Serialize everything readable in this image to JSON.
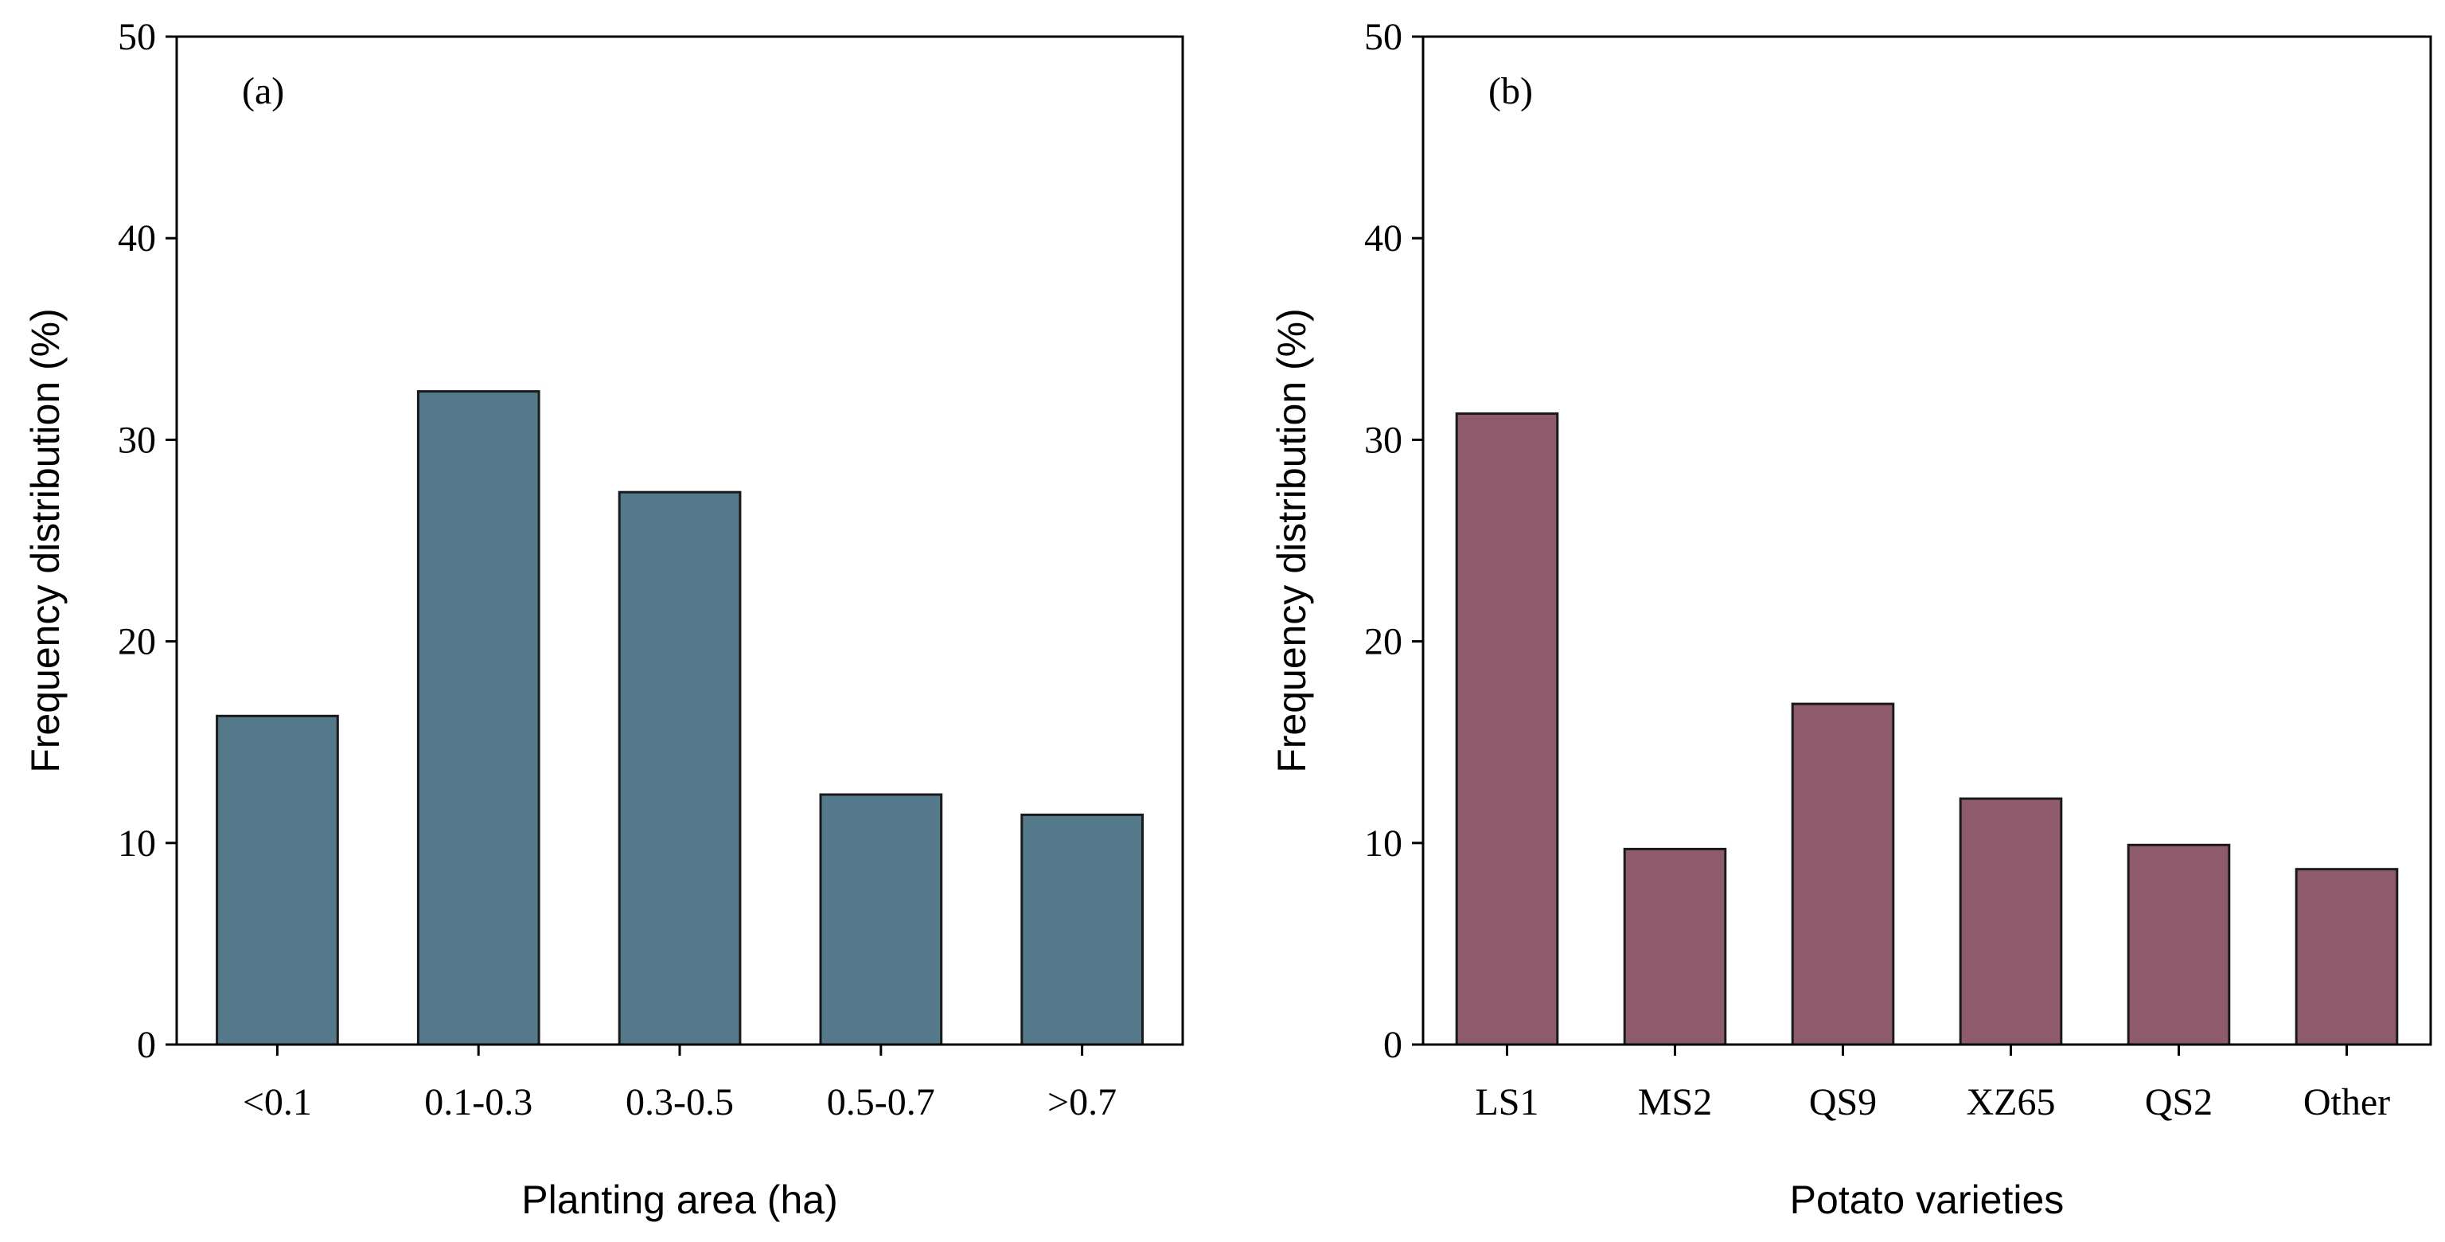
{
  "chart_data": [
    {
      "type": "bar",
      "panel_label": "(a)",
      "categories": [
        "<0.1",
        "0.1-0.3",
        "0.3-0.5",
        "0.5-0.7",
        ">0.7"
      ],
      "values": [
        16.3,
        32.4,
        27.4,
        12.4,
        11.4
      ],
      "title": "",
      "xlabel": "Planting area (ha)",
      "ylabel": "Frequency distribution (%)",
      "ylim": [
        0,
        50
      ],
      "yticks": [
        0,
        10,
        20,
        30,
        40,
        50
      ],
      "color": "#54798a",
      "grid": false
    },
    {
      "type": "bar",
      "panel_label": "(b)",
      "categories": [
        "LS1",
        "MS2",
        "QS9",
        "XZ65",
        "QS2",
        "Other"
      ],
      "values": [
        31.3,
        9.7,
        16.9,
        12.2,
        9.9,
        8.7
      ],
      "title": "",
      "xlabel": "Potato varieties",
      "ylabel": "Frequency distribution (%)",
      "ylim": [
        0,
        50
      ],
      "yticks": [
        0,
        10,
        20,
        30,
        40,
        50
      ],
      "color": "#8e5b6d",
      "grid": false
    }
  ]
}
